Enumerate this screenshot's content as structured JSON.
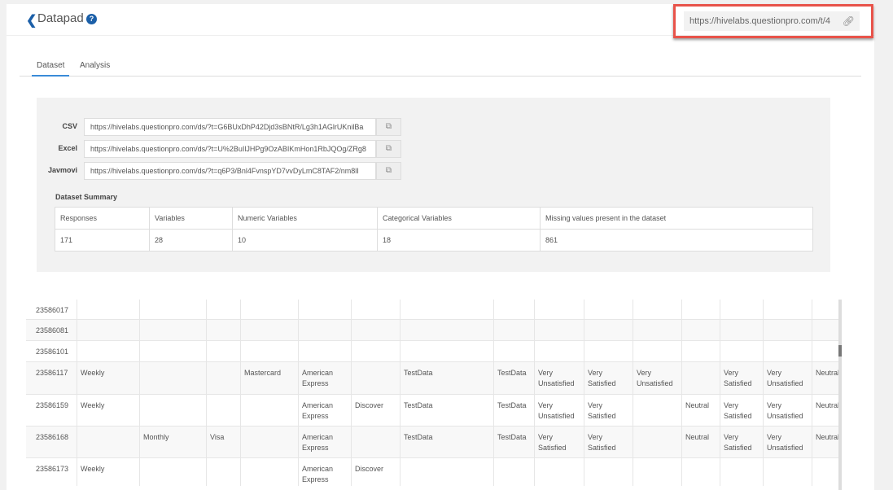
{
  "header": {
    "title": "Datapad",
    "share_url": "https://hivelabs.questionpro.com/t/4"
  },
  "tabs": [
    "Dataset",
    "Analysis"
  ],
  "links": [
    {
      "label": "CSV",
      "url": "https://hivelabs.questionpro.com/ds/?t=G6BUxDhP42Djd3sBNtR/Lg3h1AGlrUKnilBa"
    },
    {
      "label": "Excel",
      "url": "https://hivelabs.questionpro.com/ds/?t=U%2BuIlJHPg9OzABIKmHon1RbJQOg/ZRg8"
    },
    {
      "label": "Javmovi",
      "url": "https://hivelabs.questionpro.com/ds/?t=q6P3/Bnl4FvnspYD7vvDyLmC8TAF2/nm8lI"
    }
  ],
  "summary": {
    "title": "Dataset Summary",
    "headers": [
      "Responses",
      "Variables",
      "Numeric Variables",
      "Categorical Variables",
      "Missing values present in the dataset"
    ],
    "values": [
      "171",
      "28",
      "10",
      "18",
      "861"
    ]
  },
  "rows": [
    [
      "23586017",
      "",
      "",
      "",
      "",
      "",
      "",
      "",
      "",
      "",
      "",
      "",
      "",
      "",
      "",
      ""
    ],
    [
      "23586081",
      "",
      "",
      "",
      "",
      "",
      "",
      "",
      "",
      "",
      "",
      "",
      "",
      "",
      "",
      ""
    ],
    [
      "23586101",
      "",
      "",
      "",
      "",
      "",
      "",
      "",
      "",
      "",
      "",
      "",
      "",
      "",
      "",
      ""
    ],
    [
      "23586117",
      "Weekly",
      "",
      "",
      "Mastercard",
      "American Express",
      "",
      "TestData",
      "TestData",
      "Very Unsatisfied",
      "Very Satisfied",
      "Very Unsatisfied",
      "",
      "Very Satisfied",
      "Very Unsatisfied",
      "Neutral"
    ],
    [
      "23586159",
      "Weekly",
      "",
      "",
      "",
      "American Express",
      "Discover",
      "TestData",
      "TestData",
      "Very Unsatisfied",
      "Very Satisfied",
      "",
      "Neutral",
      "Very Satisfied",
      "Very Unsatisfied",
      "Neutral"
    ],
    [
      "23586168",
      "",
      "Monthly",
      "Visa",
      "",
      "American Express",
      "",
      "TestData",
      "TestData",
      "Very Satisfied",
      "Very Satisfied",
      "",
      "Neutral",
      "Very Satisfied",
      "Very Unsatisfied",
      "Neutral"
    ],
    [
      "23586173",
      "Weekly",
      "",
      "",
      "",
      "American Express",
      "Discover",
      "",
      "",
      "",
      "",
      "",
      "",
      "",
      "",
      ""
    ]
  ]
}
